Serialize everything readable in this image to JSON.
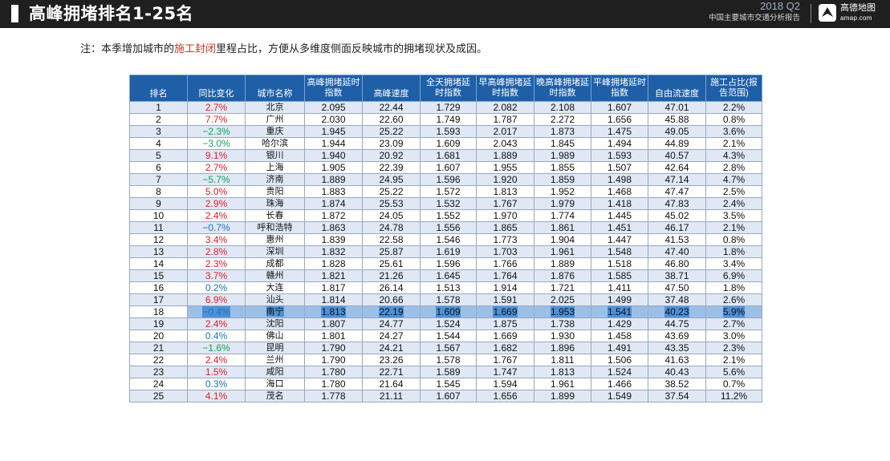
{
  "header": {
    "title": "高峰拥堵排名1-25名",
    "period": "2018 Q2",
    "report_name": "中国主要城市交通分析报告",
    "brand_name": "高德地图",
    "brand_url": "amap.com"
  },
  "note": {
    "prefix": "注：本季增加城市的",
    "highlight": "施工封闭",
    "suffix": "里程占比，方便从多维度侧面反映城市的拥堵现状及成因。"
  },
  "table": {
    "headers": [
      "排名",
      "同比变化",
      "城市名称",
      "高峰拥堵延时指数",
      "高峰速度",
      "全天拥堵延时指数",
      "早高峰拥堵延时指数",
      "晚高峰拥堵延时指数",
      "平峰拥堵延时指数",
      "自由流速度",
      "施工占比(报告范围)"
    ],
    "selected_rank": "18",
    "rows": [
      {
        "rank": "1",
        "change": "2.7%",
        "trend": "up",
        "city": "北京",
        "peak_index": "2.095",
        "peak_speed": "22.44",
        "day_index": "1.729",
        "morning_index": "2.082",
        "evening_index": "2.108",
        "offpeak_index": "1.607",
        "free_flow_speed": "47.01",
        "construction_ratio": "2.2%"
      },
      {
        "rank": "2",
        "change": "7.7%",
        "trend": "up",
        "city": "广州",
        "peak_index": "2.030",
        "peak_speed": "22.60",
        "day_index": "1.749",
        "morning_index": "1.787",
        "evening_index": "2.272",
        "offpeak_index": "1.656",
        "free_flow_speed": "45.88",
        "construction_ratio": "0.8%"
      },
      {
        "rank": "3",
        "change": "−2.3%",
        "trend": "down",
        "city": "重庆",
        "peak_index": "1.945",
        "peak_speed": "25.22",
        "day_index": "1.593",
        "morning_index": "2.017",
        "evening_index": "1.873",
        "offpeak_index": "1.475",
        "free_flow_speed": "49.05",
        "construction_ratio": "3.6%"
      },
      {
        "rank": "4",
        "change": "−3.0%",
        "trend": "down",
        "city": "哈尔滨",
        "peak_index": "1.944",
        "peak_speed": "23.09",
        "day_index": "1.609",
        "morning_index": "2.043",
        "evening_index": "1.845",
        "offpeak_index": "1.494",
        "free_flow_speed": "44.89",
        "construction_ratio": "2.1%"
      },
      {
        "rank": "5",
        "change": "9.1%",
        "trend": "up",
        "city": "银川",
        "peak_index": "1.940",
        "peak_speed": "20.92",
        "day_index": "1.681",
        "morning_index": "1.889",
        "evening_index": "1.989",
        "offpeak_index": "1.593",
        "free_flow_speed": "40.57",
        "construction_ratio": "4.3%"
      },
      {
        "rank": "6",
        "change": "2.7%",
        "trend": "up",
        "city": "上海",
        "peak_index": "1.905",
        "peak_speed": "22.39",
        "day_index": "1.607",
        "morning_index": "1.955",
        "evening_index": "1.855",
        "offpeak_index": "1.507",
        "free_flow_speed": "42.64",
        "construction_ratio": "2.8%"
      },
      {
        "rank": "7",
        "change": "−5.7%",
        "trend": "down",
        "city": "济南",
        "peak_index": "1.889",
        "peak_speed": "24.95",
        "day_index": "1.596",
        "morning_index": "1.920",
        "evening_index": "1.859",
        "offpeak_index": "1.498",
        "free_flow_speed": "47.14",
        "construction_ratio": "4.7%"
      },
      {
        "rank": "8",
        "change": "5.0%",
        "trend": "up",
        "city": "贵阳",
        "peak_index": "1.883",
        "peak_speed": "25.22",
        "day_index": "1.572",
        "morning_index": "1.813",
        "evening_index": "1.952",
        "offpeak_index": "1.468",
        "free_flow_speed": "47.47",
        "construction_ratio": "2.5%"
      },
      {
        "rank": "9",
        "change": "2.9%",
        "trend": "up",
        "city": "珠海",
        "peak_index": "1.874",
        "peak_speed": "25.53",
        "day_index": "1.532",
        "morning_index": "1.767",
        "evening_index": "1.979",
        "offpeak_index": "1.418",
        "free_flow_speed": "47.83",
        "construction_ratio": "2.4%"
      },
      {
        "rank": "10",
        "change": "2.4%",
        "trend": "up",
        "city": "长春",
        "peak_index": "1.872",
        "peak_speed": "24.05",
        "day_index": "1.552",
        "morning_index": "1.970",
        "evening_index": "1.774",
        "offpeak_index": "1.445",
        "free_flow_speed": "45.02",
        "construction_ratio": "3.5%"
      },
      {
        "rank": "11",
        "change": "−0.7%",
        "trend": "low",
        "city": "呼和浩特",
        "peak_index": "1.863",
        "peak_speed": "24.78",
        "day_index": "1.556",
        "morning_index": "1.865",
        "evening_index": "1.861",
        "offpeak_index": "1.451",
        "free_flow_speed": "46.17",
        "construction_ratio": "2.1%"
      },
      {
        "rank": "12",
        "change": "3.4%",
        "trend": "up",
        "city": "惠州",
        "peak_index": "1.839",
        "peak_speed": "22.58",
        "day_index": "1.546",
        "morning_index": "1.773",
        "evening_index": "1.904",
        "offpeak_index": "1.447",
        "free_flow_speed": "41.53",
        "construction_ratio": "0.8%"
      },
      {
        "rank": "13",
        "change": "2.8%",
        "trend": "up",
        "city": "深圳",
        "peak_index": "1.832",
        "peak_speed": "25.87",
        "day_index": "1.619",
        "morning_index": "1.703",
        "evening_index": "1.961",
        "offpeak_index": "1.548",
        "free_flow_speed": "47.40",
        "construction_ratio": "1.8%"
      },
      {
        "rank": "14",
        "change": "2.3%",
        "trend": "up",
        "city": "成都",
        "peak_index": "1.828",
        "peak_speed": "25.61",
        "day_index": "1.596",
        "morning_index": "1.766",
        "evening_index": "1.889",
        "offpeak_index": "1.518",
        "free_flow_speed": "46.80",
        "construction_ratio": "3.4%"
      },
      {
        "rank": "15",
        "change": "3.7%",
        "trend": "up",
        "city": "赣州",
        "peak_index": "1.821",
        "peak_speed": "21.26",
        "day_index": "1.645",
        "morning_index": "1.764",
        "evening_index": "1.876",
        "offpeak_index": "1.585",
        "free_flow_speed": "38.71",
        "construction_ratio": "6.9%"
      },
      {
        "rank": "16",
        "change": "0.2%",
        "trend": "low",
        "city": "大连",
        "peak_index": "1.817",
        "peak_speed": "26.14",
        "day_index": "1.513",
        "morning_index": "1.914",
        "evening_index": "1.721",
        "offpeak_index": "1.411",
        "free_flow_speed": "47.50",
        "construction_ratio": "1.8%"
      },
      {
        "rank": "17",
        "change": "6.9%",
        "trend": "up",
        "city": "汕头",
        "peak_index": "1.814",
        "peak_speed": "20.66",
        "day_index": "1.578",
        "morning_index": "1.591",
        "evening_index": "2.025",
        "offpeak_index": "1.499",
        "free_flow_speed": "37.48",
        "construction_ratio": "2.6%"
      },
      {
        "rank": "18",
        "change": "−0.4%",
        "trend": "low",
        "city": "南宁",
        "peak_index": "1.813",
        "peak_speed": "22.19",
        "day_index": "1.609",
        "morning_index": "1.669",
        "evening_index": "1.953",
        "offpeak_index": "1.541",
        "free_flow_speed": "40.23",
        "construction_ratio": "5.9%"
      },
      {
        "rank": "19",
        "change": "2.4%",
        "trend": "up",
        "city": "沈阳",
        "peak_index": "1.807",
        "peak_speed": "24.77",
        "day_index": "1.524",
        "morning_index": "1.875",
        "evening_index": "1.738",
        "offpeak_index": "1.429",
        "free_flow_speed": "44.75",
        "construction_ratio": "2.7%"
      },
      {
        "rank": "20",
        "change": "0.4%",
        "trend": "low",
        "city": "佛山",
        "peak_index": "1.801",
        "peak_speed": "24.27",
        "day_index": "1.544",
        "morning_index": "1.669",
        "evening_index": "1.930",
        "offpeak_index": "1.458",
        "free_flow_speed": "43.69",
        "construction_ratio": "3.0%"
      },
      {
        "rank": "21",
        "change": "−1.6%",
        "trend": "down",
        "city": "昆明",
        "peak_index": "1.790",
        "peak_speed": "24.21",
        "day_index": "1.567",
        "morning_index": "1.682",
        "evening_index": "1.896",
        "offpeak_index": "1.491",
        "free_flow_speed": "43.35",
        "construction_ratio": "2.3%"
      },
      {
        "rank": "22",
        "change": "2.4%",
        "trend": "up",
        "city": "兰州",
        "peak_index": "1.790",
        "peak_speed": "23.26",
        "day_index": "1.578",
        "morning_index": "1.767",
        "evening_index": "1.811",
        "offpeak_index": "1.506",
        "free_flow_speed": "41.63",
        "construction_ratio": "2.1%"
      },
      {
        "rank": "23",
        "change": "1.5%",
        "trend": "up",
        "city": "咸阳",
        "peak_index": "1.780",
        "peak_speed": "22.71",
        "day_index": "1.589",
        "morning_index": "1.747",
        "evening_index": "1.813",
        "offpeak_index": "1.524",
        "free_flow_speed": "40.43",
        "construction_ratio": "5.6%"
      },
      {
        "rank": "24",
        "change": "0.3%",
        "trend": "low",
        "city": "海口",
        "peak_index": "1.780",
        "peak_speed": "21.64",
        "day_index": "1.545",
        "morning_index": "1.594",
        "evening_index": "1.961",
        "offpeak_index": "1.466",
        "free_flow_speed": "38.52",
        "construction_ratio": "0.7%"
      },
      {
        "rank": "25",
        "change": "4.1%",
        "trend": "up",
        "city": "茂名",
        "peak_index": "1.778",
        "peak_speed": "21.11",
        "day_index": "1.607",
        "morning_index": "1.656",
        "evening_index": "1.899",
        "offpeak_index": "1.549",
        "free_flow_speed": "37.54",
        "construction_ratio": "11.2%"
      }
    ]
  }
}
